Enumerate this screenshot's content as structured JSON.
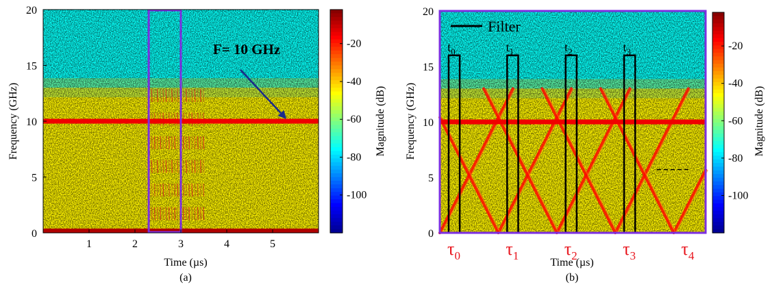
{
  "colormap": [
    "#00008f",
    "#0000ff",
    "#0080ff",
    "#00ffff",
    "#80ff80",
    "#ffff00",
    "#ff8000",
    "#ff0000",
    "#800000"
  ],
  "chart_data": [
    {
      "type": "heatmap",
      "id": "a",
      "panel_caption": "(a)",
      "xlabel": "Time (µs)",
      "ylabel": "Frequency (GHz)",
      "xlim": [
        0,
        6
      ],
      "ylim": [
        0,
        20
      ],
      "xticks": [
        1,
        2,
        3,
        4,
        5
      ],
      "yticks": [
        0,
        5,
        10,
        15,
        20
      ],
      "colorbar": {
        "label": "Magnitude (dB)",
        "range": [
          -120,
          -2
        ],
        "ticks": [
          -20,
          -40,
          -60,
          -80,
          -100
        ]
      },
      "content": {
        "noise_floor_dB_below_13GHz": -45,
        "noise_floor_dB_above_13GHz": -75,
        "tone_frequency_GHz": 10,
        "tone_dB": -15,
        "dc_line_frequency_GHz": 0.2,
        "burst_time_us": [
          2.3,
          3.5
        ]
      },
      "annotations": [
        {
          "text": "F= 10 GHz",
          "time_us": 3.7,
          "freq_GHz": 16,
          "arrow_to_time_us": 5.3,
          "arrow_to_freq_GHz": 10.2,
          "color": "#000000"
        }
      ],
      "highlight_box": {
        "time_us": [
          2.3,
          3.0
        ],
        "freq_GHz": [
          0,
          20
        ],
        "color": "#7b2fe0"
      }
    },
    {
      "type": "heatmap",
      "id": "b",
      "panel_caption": "(b)",
      "xlabel": "Time (µs)",
      "ylabel": "Frequency (GHz)",
      "xlim": [
        0,
        6
      ],
      "ylim": [
        0,
        20
      ],
      "yticks": [
        0,
        5,
        10,
        15,
        20
      ],
      "colorbar": {
        "label": "Magnitude (dB)",
        "range": [
          -120,
          -2
        ],
        "ticks": [
          -20,
          -40,
          -60,
          -80,
          -100
        ]
      },
      "content": {
        "noise_floor_dB_below_13GHz": -45,
        "noise_floor_dB_above_13GHz": -75,
        "tone_frequency_GHz": 10,
        "tone_dB": -15,
        "chirp_vertices_time_us": [
          0,
          1.32,
          2.64,
          3.96,
          5.28
        ],
        "chirp_low_GHz": 0,
        "chirp_high_GHz": 13,
        "chirp_dB": -18
      },
      "legend": {
        "entries": [
          "Filter"
        ],
        "position": "top-left"
      },
      "filters": [
        {
          "label": "t",
          "subscript": "0",
          "time_us": [
            0.2,
            0.45
          ],
          "freq_GHz": [
            0,
            16
          ]
        },
        {
          "label": "t",
          "subscript": "1",
          "time_us": [
            1.52,
            1.77
          ],
          "freq_GHz": [
            0,
            16
          ]
        },
        {
          "label": "t",
          "subscript": "2",
          "time_us": [
            2.84,
            3.09
          ],
          "freq_GHz": [
            0,
            16
          ]
        },
        {
          "label": "t",
          "subscript": "3",
          "time_us": [
            4.16,
            4.41
          ],
          "freq_GHz": [
            0,
            16
          ]
        }
      ],
      "tau_labels": [
        {
          "label": "τ",
          "subscript": "0",
          "time_us": 0.1
        },
        {
          "label": "τ",
          "subscript": "1",
          "time_us": 1.42
        },
        {
          "label": "τ",
          "subscript": "2",
          "time_us": 2.74
        },
        {
          "label": "τ",
          "subscript": "3",
          "time_us": 4.06
        },
        {
          "label": "τ",
          "subscript": "4",
          "time_us": 5.38
        }
      ],
      "tau_color": "#e8141c",
      "dashed_marker": {
        "time_us": [
          4.9,
          5.65
        ],
        "freq_GHz": 5.7
      },
      "frame_color": "#7b2fe0"
    }
  ]
}
